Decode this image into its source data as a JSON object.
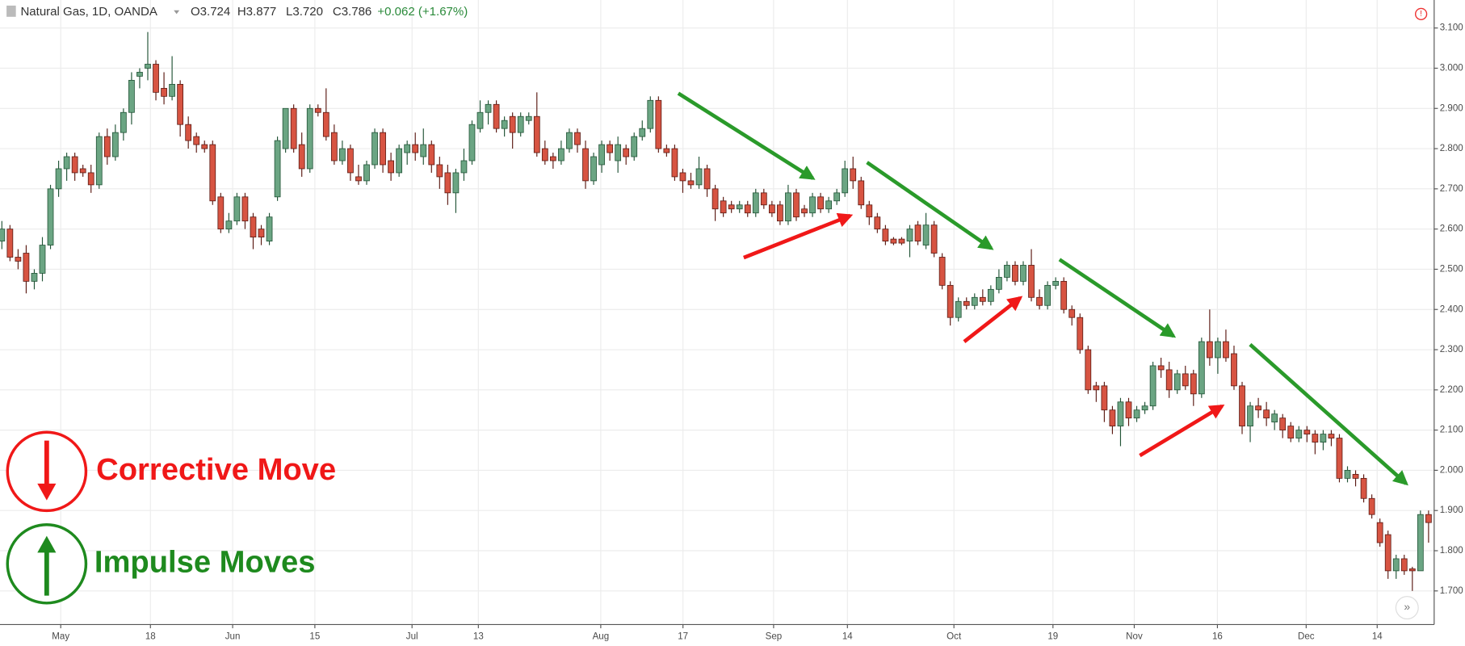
{
  "header": {
    "symbol": "Natural Gas, 1D, OANDA",
    "open": "O3.724",
    "high": "H3.877",
    "low": "L3.720",
    "close": "C3.786",
    "change": "+0.062 (+1.67%)"
  },
  "chart_data": {
    "type": "candlestick",
    "up_color": "#6ba583",
    "down_color": "#d75442",
    "up_border": "#225437",
    "down_border": "#5b1a13",
    "ylim": [
      1.68,
      3.12
    ],
    "yticks": [
      {
        "value": 1.7,
        "label": "1.700"
      },
      {
        "value": 1.8,
        "label": "1.800"
      },
      {
        "value": 1.9,
        "label": "1.900"
      },
      {
        "value": 2.0,
        "label": "2.000"
      },
      {
        "value": 2.1,
        "label": "2.100"
      },
      {
        "value": 2.2,
        "label": "2.200"
      },
      {
        "value": 2.3,
        "label": "2.300"
      },
      {
        "value": 2.4,
        "label": "2.400"
      },
      {
        "value": 2.5,
        "label": "2.500"
      },
      {
        "value": 2.6,
        "label": "2.600"
      },
      {
        "value": 2.7,
        "label": "2.700"
      },
      {
        "value": 2.8,
        "label": "2.800"
      },
      {
        "value": 2.9,
        "label": "2.900"
      },
      {
        "value": 3.0,
        "label": "3.000"
      },
      {
        "value": 3.1,
        "label": "3.100"
      }
    ],
    "xtick_labels": [
      "May",
      "18",
      "Jun",
      "15",
      "Jul",
      "13",
      "Aug",
      "17",
      "Sep",
      "14",
      "Oct",
      "19",
      "Nov",
      "16",
      "Dec",
      "14"
    ],
    "grid": true,
    "annotations": {
      "corrective": "Corrective Move",
      "impulse": "Impulse Moves"
    },
    "ohlc": [
      [
        2.57,
        2.62,
        2.55,
        2.6
      ],
      [
        2.6,
        2.61,
        2.52,
        2.53
      ],
      [
        2.53,
        2.55,
        2.5,
        2.52
      ],
      [
        2.54,
        2.56,
        2.44,
        2.47
      ],
      [
        2.47,
        2.5,
        2.45,
        2.49
      ],
      [
        2.49,
        2.58,
        2.47,
        2.56
      ],
      [
        2.56,
        2.71,
        2.55,
        2.7
      ],
      [
        2.7,
        2.77,
        2.68,
        2.75
      ],
      [
        2.75,
        2.79,
        2.72,
        2.78
      ],
      [
        2.78,
        2.79,
        2.72,
        2.74
      ],
      [
        2.75,
        2.76,
        2.73,
        2.74
      ],
      [
        2.74,
        2.76,
        2.69,
        2.71
      ],
      [
        2.71,
        2.84,
        2.7,
        2.83
      ],
      [
        2.83,
        2.85,
        2.76,
        2.78
      ],
      [
        2.78,
        2.86,
        2.77,
        2.84
      ],
      [
        2.84,
        2.9,
        2.82,
        2.89
      ],
      [
        2.89,
        2.99,
        2.86,
        2.97
      ],
      [
        2.98,
        3.0,
        2.95,
        2.99
      ],
      [
        3.0,
        3.09,
        2.97,
        3.01
      ],
      [
        3.01,
        3.02,
        2.92,
        2.94
      ],
      [
        2.95,
        2.99,
        2.91,
        2.93
      ],
      [
        2.93,
        3.03,
        2.92,
        2.96
      ],
      [
        2.96,
        2.97,
        2.83,
        2.86
      ],
      [
        2.86,
        2.88,
        2.8,
        2.82
      ],
      [
        2.83,
        2.84,
        2.79,
        2.81
      ],
      [
        2.81,
        2.82,
        2.79,
        2.8
      ],
      [
        2.81,
        2.82,
        2.66,
        2.67
      ],
      [
        2.68,
        2.69,
        2.59,
        2.6
      ],
      [
        2.6,
        2.64,
        2.59,
        2.62
      ],
      [
        2.62,
        2.69,
        2.61,
        2.68
      ],
      [
        2.68,
        2.69,
        2.6,
        2.62
      ],
      [
        2.63,
        2.64,
        2.55,
        2.58
      ],
      [
        2.6,
        2.61,
        2.56,
        2.58
      ],
      [
        2.57,
        2.64,
        2.56,
        2.63
      ],
      [
        2.68,
        2.83,
        2.67,
        2.82
      ],
      [
        2.8,
        2.9,
        2.79,
        2.9
      ],
      [
        2.9,
        2.91,
        2.79,
        2.8
      ],
      [
        2.81,
        2.84,
        2.73,
        2.75
      ],
      [
        2.75,
        2.91,
        2.74,
        2.9
      ],
      [
        2.9,
        2.91,
        2.88,
        2.89
      ],
      [
        2.89,
        2.95,
        2.82,
        2.83
      ],
      [
        2.84,
        2.86,
        2.76,
        2.77
      ],
      [
        2.77,
        2.82,
        2.76,
        2.8
      ],
      [
        2.8,
        2.81,
        2.72,
        2.74
      ],
      [
        2.73,
        2.76,
        2.71,
        2.72
      ],
      [
        2.72,
        2.77,
        2.71,
        2.76
      ],
      [
        2.76,
        2.85,
        2.75,
        2.84
      ],
      [
        2.84,
        2.85,
        2.74,
        2.76
      ],
      [
        2.77,
        2.79,
        2.72,
        2.74
      ],
      [
        2.74,
        2.81,
        2.73,
        2.8
      ],
      [
        2.79,
        2.82,
        2.76,
        2.81
      ],
      [
        2.81,
        2.84,
        2.77,
        2.79
      ],
      [
        2.78,
        2.85,
        2.76,
        2.81
      ],
      [
        2.81,
        2.82,
        2.74,
        2.76
      ],
      [
        2.76,
        2.78,
        2.7,
        2.73
      ],
      [
        2.74,
        2.76,
        2.66,
        2.69
      ],
      [
        2.69,
        2.75,
        2.64,
        2.74
      ],
      [
        2.74,
        2.8,
        2.72,
        2.77
      ],
      [
        2.77,
        2.87,
        2.76,
        2.86
      ],
      [
        2.85,
        2.92,
        2.84,
        2.89
      ],
      [
        2.89,
        2.92,
        2.86,
        2.91
      ],
      [
        2.91,
        2.92,
        2.84,
        2.85
      ],
      [
        2.85,
        2.88,
        2.83,
        2.87
      ],
      [
        2.88,
        2.89,
        2.8,
        2.84
      ],
      [
        2.84,
        2.89,
        2.83,
        2.88
      ],
      [
        2.87,
        2.89,
        2.86,
        2.88
      ],
      [
        2.88,
        2.94,
        2.78,
        2.79
      ],
      [
        2.8,
        2.82,
        2.76,
        2.77
      ],
      [
        2.78,
        2.79,
        2.75,
        2.77
      ],
      [
        2.77,
        2.82,
        2.76,
        2.8
      ],
      [
        2.8,
        2.85,
        2.79,
        2.84
      ],
      [
        2.84,
        2.85,
        2.79,
        2.81
      ],
      [
        2.8,
        2.82,
        2.7,
        2.72
      ],
      [
        2.72,
        2.79,
        2.71,
        2.78
      ],
      [
        2.76,
        2.82,
        2.74,
        2.81
      ],
      [
        2.81,
        2.82,
        2.77,
        2.79
      ],
      [
        2.77,
        2.83,
        2.74,
        2.81
      ],
      [
        2.8,
        2.81,
        2.76,
        2.78
      ],
      [
        2.78,
        2.84,
        2.77,
        2.83
      ],
      [
        2.83,
        2.87,
        2.82,
        2.85
      ],
      [
        2.85,
        2.93,
        2.84,
        2.92
      ],
      [
        2.92,
        2.93,
        2.79,
        2.8
      ],
      [
        2.8,
        2.81,
        2.78,
        2.79
      ],
      [
        2.8,
        2.81,
        2.72,
        2.73
      ],
      [
        2.74,
        2.75,
        2.69,
        2.72
      ],
      [
        2.72,
        2.74,
        2.7,
        2.71
      ],
      [
        2.71,
        2.78,
        2.7,
        2.75
      ],
      [
        2.75,
        2.76,
        2.68,
        2.7
      ],
      [
        2.7,
        2.71,
        2.62,
        2.65
      ],
      [
        2.67,
        2.68,
        2.63,
        2.64
      ],
      [
        2.66,
        2.67,
        2.64,
        2.65
      ],
      [
        2.65,
        2.67,
        2.64,
        2.66
      ],
      [
        2.66,
        2.67,
        2.63,
        2.64
      ],
      [
        2.64,
        2.7,
        2.63,
        2.69
      ],
      [
        2.69,
        2.7,
        2.65,
        2.66
      ],
      [
        2.66,
        2.67,
        2.63,
        2.64
      ],
      [
        2.66,
        2.67,
        2.61,
        2.62
      ],
      [
        2.62,
        2.71,
        2.61,
        2.69
      ],
      [
        2.69,
        2.7,
        2.62,
        2.63
      ],
      [
        2.65,
        2.66,
        2.63,
        2.64
      ],
      [
        2.64,
        2.69,
        2.63,
        2.68
      ],
      [
        2.68,
        2.69,
        2.64,
        2.65
      ],
      [
        2.65,
        2.68,
        2.64,
        2.67
      ],
      [
        2.67,
        2.7,
        2.66,
        2.69
      ],
      [
        2.69,
        2.77,
        2.68,
        2.75
      ],
      [
        2.75,
        2.78,
        2.7,
        2.72
      ],
      [
        2.72,
        2.73,
        2.65,
        2.66
      ],
      [
        2.66,
        2.67,
        2.61,
        2.63
      ],
      [
        2.63,
        2.64,
        2.59,
        2.6
      ],
      [
        2.6,
        2.61,
        2.56,
        2.57
      ],
      [
        2.575,
        2.58,
        2.56,
        2.565
      ],
      [
        2.575,
        2.58,
        2.56,
        2.565
      ],
      [
        2.57,
        2.61,
        2.53,
        2.6
      ],
      [
        2.61,
        2.62,
        2.56,
        2.57
      ],
      [
        2.56,
        2.64,
        2.55,
        2.61
      ],
      [
        2.61,
        2.62,
        2.53,
        2.54
      ],
      [
        2.53,
        2.54,
        2.45,
        2.46
      ],
      [
        2.46,
        2.47,
        2.36,
        2.38
      ],
      [
        2.38,
        2.43,
        2.37,
        2.42
      ],
      [
        2.42,
        2.43,
        2.4,
        2.41
      ],
      [
        2.41,
        2.44,
        2.4,
        2.43
      ],
      [
        2.43,
        2.45,
        2.41,
        2.42
      ],
      [
        2.42,
        2.46,
        2.41,
        2.45
      ],
      [
        2.45,
        2.5,
        2.44,
        2.48
      ],
      [
        2.48,
        2.52,
        2.47,
        2.51
      ],
      [
        2.51,
        2.52,
        2.46,
        2.47
      ],
      [
        2.47,
        2.52,
        2.46,
        2.51
      ],
      [
        2.51,
        2.55,
        2.42,
        2.43
      ],
      [
        2.43,
        2.45,
        2.4,
        2.41
      ],
      [
        2.41,
        2.47,
        2.4,
        2.46
      ],
      [
        2.46,
        2.48,
        2.45,
        2.47
      ],
      [
        2.47,
        2.48,
        2.39,
        2.4
      ],
      [
        2.4,
        2.41,
        2.36,
        2.38
      ],
      [
        2.38,
        2.39,
        2.29,
        2.3
      ],
      [
        2.3,
        2.31,
        2.19,
        2.2
      ],
      [
        2.21,
        2.22,
        2.17,
        2.2
      ],
      [
        2.21,
        2.22,
        2.12,
        2.15
      ],
      [
        2.15,
        2.16,
        2.09,
        2.11
      ],
      [
        2.11,
        2.18,
        2.06,
        2.17
      ],
      [
        2.17,
        2.18,
        2.11,
        2.13
      ],
      [
        2.13,
        2.16,
        2.12,
        2.15
      ],
      [
        2.15,
        2.17,
        2.14,
        2.16
      ],
      [
        2.16,
        2.27,
        2.15,
        2.26
      ],
      [
        2.26,
        2.28,
        2.23,
        2.25
      ],
      [
        2.25,
        2.27,
        2.18,
        2.2
      ],
      [
        2.2,
        2.25,
        2.19,
        2.24
      ],
      [
        2.24,
        2.26,
        2.2,
        2.21
      ],
      [
        2.24,
        2.25,
        2.16,
        2.19
      ],
      [
        2.19,
        2.33,
        2.18,
        2.32
      ],
      [
        2.32,
        2.4,
        2.26,
        2.28
      ],
      [
        2.28,
        2.33,
        2.24,
        2.32
      ],
      [
        2.32,
        2.35,
        2.27,
        2.28
      ],
      [
        2.29,
        2.31,
        2.2,
        2.21
      ],
      [
        2.21,
        2.22,
        2.09,
        2.11
      ],
      [
        2.11,
        2.17,
        2.07,
        2.16
      ],
      [
        2.16,
        2.18,
        2.13,
        2.15
      ],
      [
        2.15,
        2.17,
        2.11,
        2.13
      ],
      [
        2.12,
        2.15,
        2.1,
        2.14
      ],
      [
        2.13,
        2.14,
        2.08,
        2.1
      ],
      [
        2.11,
        2.12,
        2.07,
        2.08
      ],
      [
        2.08,
        2.11,
        2.07,
        2.1
      ],
      [
        2.1,
        2.11,
        2.07,
        2.09
      ],
      [
        2.09,
        2.1,
        2.04,
        2.07
      ],
      [
        2.07,
        2.1,
        2.05,
        2.09
      ],
      [
        2.09,
        2.1,
        2.06,
        2.08
      ],
      [
        2.08,
        2.09,
        1.97,
        1.98
      ],
      [
        1.98,
        2.01,
        1.97,
        2.0
      ],
      [
        1.99,
        2.0,
        1.96,
        1.98
      ],
      [
        1.98,
        1.99,
        1.92,
        1.93
      ],
      [
        1.93,
        1.94,
        1.88,
        1.89
      ],
      [
        1.87,
        1.88,
        1.81,
        1.82
      ],
      [
        1.84,
        1.85,
        1.73,
        1.75
      ],
      [
        1.75,
        1.79,
        1.73,
        1.78
      ],
      [
        1.78,
        1.79,
        1.74,
        1.75
      ],
      [
        1.755,
        1.76,
        1.7,
        1.75
      ],
      [
        1.75,
        1.9,
        1.75,
        1.89
      ],
      [
        1.89,
        1.9,
        1.82,
        1.87
      ]
    ]
  }
}
